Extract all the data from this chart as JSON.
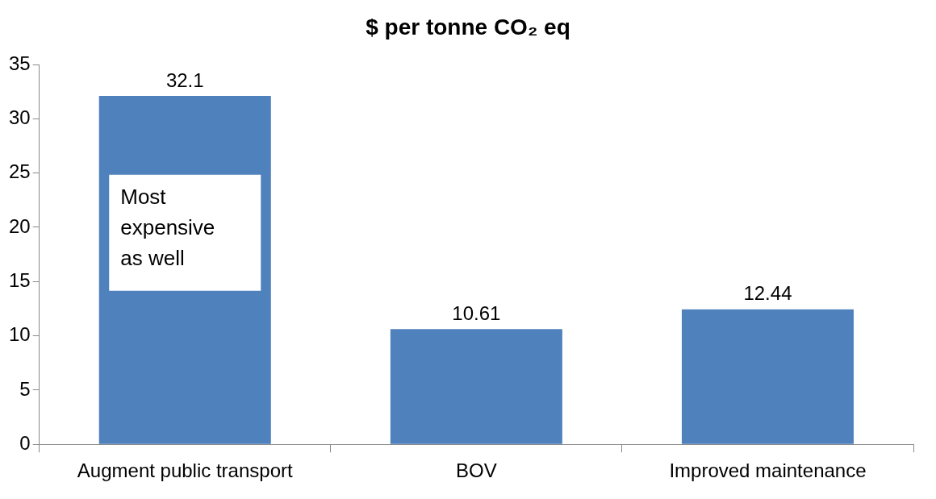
{
  "chart_data": {
    "type": "bar",
    "title": "$ per tonne CO₂ eq",
    "categories": [
      "Augment public transport",
      "BOV",
      "Improved maintenance"
    ],
    "values": [
      32.1,
      10.61,
      12.44
    ],
    "color": "#4f81bd",
    "ylim": [
      0,
      35
    ],
    "yticks": [
      0,
      5,
      10,
      15,
      20,
      25,
      30,
      35
    ],
    "grid": false,
    "legend": false,
    "data_labels": true,
    "annotations": [
      "Most expensive as well"
    ]
  }
}
